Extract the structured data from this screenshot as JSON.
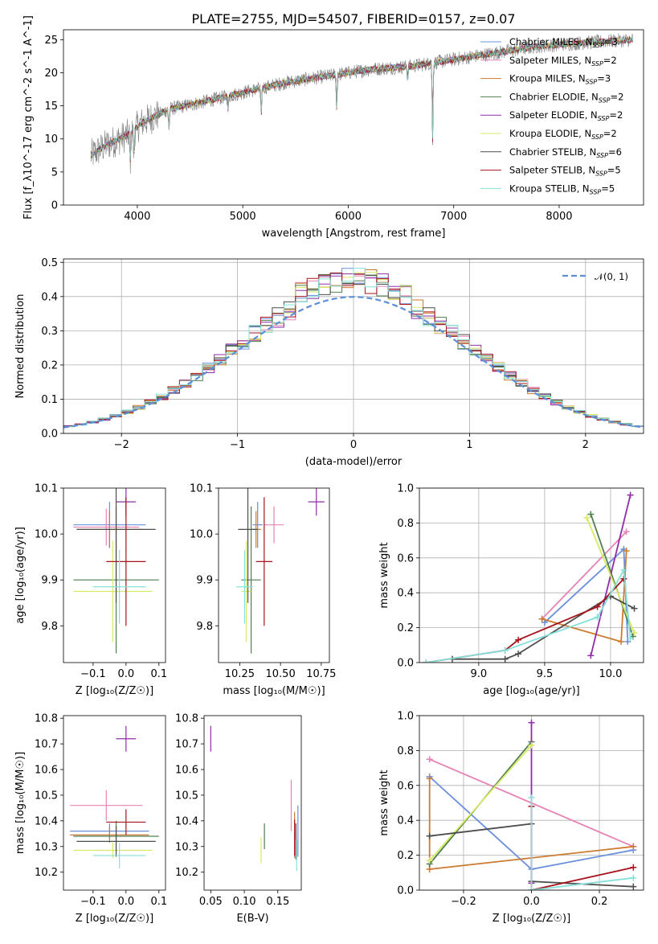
{
  "figure": {
    "title": "PLATE=2755, MJD=54507, FIBERID=0157, z=0.07"
  },
  "colors": {
    "Chabrier MILES": "#6a8fdc",
    "Salpeter MILES": "#e683b4",
    "Kroupa MILES": "#cd7a2f",
    "Chabrier ELODIE": "#4f7f4f",
    "Salpeter ELODIE": "#8e2ea6",
    "Kroupa ELODIE": "#d7ea63",
    "Chabrier STELIB": "#4d4d4d",
    "Salpeter STELIB": "#a6141c",
    "Kroupa STELIB": "#86e0da",
    "data": "#808080",
    "normal": "#5b8fd9"
  },
  "chart_data": [
    {
      "id": "spectrum",
      "type": "line",
      "xlabel": "wavelength [Angstrom, rest frame]",
      "ylabel": "Flux [f_λ10^-17 erg cm^-2 s^-1 A^-1]",
      "xlim": [
        3300,
        8800
      ],
      "ylim": [
        0,
        26.5
      ],
      "xticks": [
        4000,
        5000,
        6000,
        7000,
        8000
      ],
      "yticks": [
        0,
        5,
        10,
        15,
        20,
        25
      ],
      "x_range_data": [
        3560,
        8700
      ],
      "continuum_anchors": [
        [
          3560,
          7.5
        ],
        [
          3700,
          9
        ],
        [
          3900,
          10.5
        ],
        [
          4050,
          12.5
        ],
        [
          4300,
          14.5
        ],
        [
          4600,
          15.5
        ],
        [
          5000,
          17
        ],
        [
          5400,
          18.5
        ],
        [
          5800,
          19.5
        ],
        [
          6200,
          20.5
        ],
        [
          6600,
          21
        ],
        [
          7000,
          22
        ],
        [
          7400,
          23
        ],
        [
          7800,
          24
        ],
        [
          8200,
          24.5
        ],
        [
          8700,
          25
        ]
      ],
      "absorption_features": [
        [
          3933,
          4.5
        ],
        [
          3968,
          4.5
        ],
        [
          4300,
          3
        ],
        [
          4861,
          2
        ],
        [
          5175,
          4
        ],
        [
          5890,
          5
        ],
        [
          6563,
          2
        ],
        [
          6800,
          12
        ]
      ],
      "legend_location": "upper right",
      "legend": [
        {
          "label": "Chabrier MILES, N",
          "sub": "SSP",
          "suffix": "=3"
        },
        {
          "label": "Salpeter MILES, N",
          "sub": "SSP",
          "suffix": "=2"
        },
        {
          "label": "Kroupa MILES, N",
          "sub": "SSP",
          "suffix": "=3"
        },
        {
          "label": "Chabrier ELODIE, N",
          "sub": "SSP",
          "suffix": "=2"
        },
        {
          "label": "Salpeter ELODIE, N",
          "sub": "SSP",
          "suffix": "=2"
        },
        {
          "label": "Kroupa ELODIE, N",
          "sub": "SSP",
          "suffix": "=2"
        },
        {
          "label": "Chabrier STELIB, N",
          "sub": "SSP",
          "suffix": "=6"
        },
        {
          "label": "Salpeter STELIB, N",
          "sub": "SSP",
          "suffix": "=5"
        },
        {
          "label": "Kroupa STELIB, N",
          "sub": "SSP",
          "suffix": "=5"
        }
      ]
    },
    {
      "id": "residuals",
      "type": "line",
      "xlabel": "(data-model)/error",
      "ylabel": "Normed distribution",
      "xlim": [
        -2.5,
        2.5
      ],
      "ylim": [
        0,
        0.51
      ],
      "xticks": [
        -2,
        -1,
        0,
        1,
        2
      ],
      "yticks": [
        0.0,
        0.1,
        0.2,
        0.3,
        0.4,
        0.5
      ],
      "grid": true,
      "bin_width": 0.1,
      "bin_start": -2.5,
      "bin_count": 50,
      "normal_label": "𝒩(0, 1)",
      "legend_location": "upper right"
    },
    {
      "id": "age_vs_Z",
      "type": "scatter",
      "xlabel": "Z [log₁₀(Z/Z☉)]",
      "ylabel": "age  [log₁₀(age/yr)]",
      "xlim": [
        -0.19,
        0.12
      ],
      "ylim": [
        9.72,
        10.1
      ],
      "xticks": [
        -0.1,
        0.0,
        0.1
      ],
      "yticks": [
        9.8,
        9.9,
        10.0,
        10.1
      ],
      "points": [
        {
          "model": "Chabrier MILES",
          "x": -0.05,
          "y": 10.02,
          "xerr": 0.11,
          "yerr": 0.05
        },
        {
          "model": "Salpeter MILES",
          "x": -0.06,
          "y": 10.015,
          "xerr": 0.1,
          "yerr": 0.04
        },
        {
          "model": "Kroupa MILES",
          "x": -0.05,
          "y": 10.01,
          "xerr": 0.1,
          "yerr": 0.04
        },
        {
          "model": "Chabrier ELODIE",
          "x": -0.03,
          "y": 9.9,
          "xerr": 0.13,
          "yerr": 0.16
        },
        {
          "model": "Salpeter ELODIE",
          "x": 0.0,
          "y": 10.07,
          "xerr": 0.03,
          "yerr": 0.03
        },
        {
          "model": "Kroupa ELODIE",
          "x": -0.04,
          "y": 9.875,
          "xerr": 0.12,
          "yerr": 0.11
        },
        {
          "model": "Chabrier STELIB",
          "x": -0.03,
          "y": 10.01,
          "xerr": 0.12,
          "yerr": 0.16
        },
        {
          "model": "Salpeter STELIB",
          "x": 0.0,
          "y": 9.94,
          "xerr": 0.06,
          "yerr": 0.14
        },
        {
          "model": "Kroupa STELIB",
          "x": -0.02,
          "y": 9.885,
          "xerr": 0.08,
          "yerr": 0.08
        }
      ]
    },
    {
      "id": "age_vs_mass",
      "type": "scatter",
      "xlabel": "mass [log₁₀(M/M☉)]",
      "ylabel": "",
      "xlim": [
        10.12,
        10.8
      ],
      "ylim": [
        9.72,
        10.1
      ],
      "xticks": [
        10.25,
        10.5,
        10.75
      ],
      "yticks": [
        9.8,
        9.9,
        10.0,
        10.1
      ],
      "points": [
        {
          "model": "Chabrier MILES",
          "x": 10.36,
          "y": 10.02,
          "xerr": 0.03,
          "yerr": 0.05
        },
        {
          "model": "Salpeter MILES",
          "x": 10.46,
          "y": 10.02,
          "xerr": 0.06,
          "yerr": 0.04
        },
        {
          "model": "Kroupa MILES",
          "x": 10.35,
          "y": 10.01,
          "xerr": 0.03,
          "yerr": 0.04
        },
        {
          "model": "Chabrier ELODIE",
          "x": 10.32,
          "y": 9.9,
          "xerr": 0.06,
          "yerr": 0.16
        },
        {
          "model": "Salpeter ELODIE",
          "x": 10.72,
          "y": 10.07,
          "xerr": 0.05,
          "yerr": 0.03
        },
        {
          "model": "Kroupa ELODIE",
          "x": 10.29,
          "y": 9.875,
          "xerr": 0.03,
          "yerr": 0.11
        },
        {
          "model": "Chabrier STELIB",
          "x": 10.3,
          "y": 10.01,
          "xerr": 0.06,
          "yerr": 0.16
        },
        {
          "model": "Salpeter STELIB",
          "x": 10.4,
          "y": 9.94,
          "xerr": 0.05,
          "yerr": 0.14
        },
        {
          "model": "Kroupa STELIB",
          "x": 10.28,
          "y": 9.885,
          "xerr": 0.05,
          "yerr": 0.08
        }
      ]
    },
    {
      "id": "weight_vs_age",
      "type": "line",
      "xlabel": "age  [log₁₀(age/yr)]",
      "ylabel": "mass weight",
      "xlim": [
        8.55,
        10.25
      ],
      "ylim": [
        0,
        1.0
      ],
      "xticks": [
        9.0,
        9.5,
        10.0
      ],
      "yticks": [
        0.0,
        0.2,
        0.4,
        0.6,
        0.8,
        1.0
      ],
      "grid": true,
      "series": [
        {
          "model": "Chabrier MILES",
          "x": [
            9.5,
            10.1,
            10.13
          ],
          "y": [
            0.23,
            0.65,
            0.12
          ]
        },
        {
          "model": "Salpeter MILES",
          "x": [
            9.48,
            10.12
          ],
          "y": [
            0.25,
            0.75
          ]
        },
        {
          "model": "Kroupa MILES",
          "x": [
            9.48,
            10.08,
            10.12
          ],
          "y": [
            0.25,
            0.12,
            0.64
          ]
        },
        {
          "model": "Chabrier ELODIE",
          "x": [
            9.85,
            10.17
          ],
          "y": [
            0.85,
            0.15
          ]
        },
        {
          "model": "Salpeter ELODIE",
          "x": [
            9.85,
            10.15
          ],
          "y": [
            0.04,
            0.96
          ]
        },
        {
          "model": "Kroupa ELODIE",
          "x": [
            9.82,
            10.18
          ],
          "y": [
            0.83,
            0.17
          ]
        },
        {
          "model": "Chabrier STELIB",
          "x": [
            8.8,
            9.2,
            9.3,
            10.0,
            10.18
          ],
          "y": [
            0.02,
            0.02,
            0.05,
            0.38,
            0.31
          ]
        },
        {
          "model": "Salpeter STELIB",
          "x": [
            8.6,
            9.2,
            9.3,
            9.9,
            10.1
          ],
          "y": [
            0.0,
            0.07,
            0.13,
            0.32,
            0.48
          ]
        },
        {
          "model": "Kroupa STELIB",
          "x": [
            8.6,
            9.2,
            9.9,
            10.1,
            10.15
          ],
          "y": [
            0.0,
            0.07,
            0.26,
            0.53,
            0.14
          ]
        }
      ]
    },
    {
      "id": "mass_vs_Z",
      "type": "scatter",
      "xlabel": "Z [log₁₀(Z/Z☉)]",
      "ylabel": "mass [log₁₀(M/M☉)]",
      "xlim": [
        -0.19,
        0.12
      ],
      "ylim": [
        10.13,
        10.81
      ],
      "xticks": [
        -0.1,
        0.0,
        0.1
      ],
      "yticks": [
        10.2,
        10.3,
        10.4,
        10.5,
        10.6,
        10.7,
        10.8
      ],
      "points": [
        {
          "model": "Chabrier MILES",
          "x": -0.05,
          "y": 10.36,
          "xerr": 0.12,
          "yerr": 0.03
        },
        {
          "model": "Salpeter MILES",
          "x": -0.06,
          "y": 10.46,
          "xerr": 0.11,
          "yerr": 0.06
        },
        {
          "model": "Kroupa MILES",
          "x": -0.05,
          "y": 10.345,
          "xerr": 0.12,
          "yerr": 0.03
        },
        {
          "model": "Chabrier ELODIE",
          "x": -0.03,
          "y": 10.34,
          "xerr": 0.13,
          "yerr": 0.06
        },
        {
          "model": "Salpeter ELODIE",
          "x": 0.0,
          "y": 10.72,
          "xerr": 0.03,
          "yerr": 0.05
        },
        {
          "model": "Kroupa ELODIE",
          "x": -0.04,
          "y": 10.285,
          "xerr": 0.12,
          "yerr": 0.03
        },
        {
          "model": "Chabrier STELIB",
          "x": -0.03,
          "y": 10.32,
          "xerr": 0.12,
          "yerr": 0.06
        },
        {
          "model": "Salpeter STELIB",
          "x": 0.0,
          "y": 10.395,
          "xerr": 0.06,
          "yerr": 0.05
        },
        {
          "model": "Kroupa STELIB",
          "x": -0.02,
          "y": 10.265,
          "xerr": 0.08,
          "yerr": 0.05
        }
      ]
    },
    {
      "id": "mass_vs_ebv",
      "type": "scatter",
      "xlabel": "E(B-V)",
      "ylabel": "",
      "xlim": [
        0.04,
        0.185
      ],
      "ylim": [
        10.13,
        10.81
      ],
      "xticks": [
        0.05,
        0.1,
        0.15
      ],
      "yticks": [
        10.2,
        10.3,
        10.4,
        10.5,
        10.6,
        10.7,
        10.8
      ],
      "points": [
        {
          "model": "Chabrier MILES",
          "x": 0.18,
          "y": 10.36,
          "yerr": 0.1
        },
        {
          "model": "Salpeter MILES",
          "x": 0.17,
          "y": 10.46,
          "yerr": 0.1
        },
        {
          "model": "Kroupa MILES",
          "x": 0.175,
          "y": 10.345,
          "yerr": 0.09
        },
        {
          "model": "Chabrier ELODIE",
          "x": 0.13,
          "y": 10.34,
          "yerr": 0.05
        },
        {
          "model": "Salpeter ELODIE",
          "x": 0.05,
          "y": 10.72,
          "yerr": 0.05
        },
        {
          "model": "Kroupa ELODIE",
          "x": 0.125,
          "y": 10.285,
          "yerr": 0.05
        },
        {
          "model": "Chabrier STELIB",
          "x": 0.177,
          "y": 10.32,
          "yerr": 0.07
        },
        {
          "model": "Salpeter STELIB",
          "x": 0.175,
          "y": 10.335,
          "yerr": 0.07
        },
        {
          "model": "Kroupa STELIB",
          "x": 0.178,
          "y": 10.265,
          "yerr": 0.06
        }
      ]
    },
    {
      "id": "weight_vs_Z",
      "type": "line",
      "xlabel": "Z [log₁₀(Z/Z☉)]",
      "ylabel": "mass weight",
      "xlim": [
        -0.33,
        0.33
      ],
      "ylim": [
        0,
        1.0
      ],
      "xticks": [
        -0.2,
        0.0,
        0.2
      ],
      "yticks": [
        0.0,
        0.2,
        0.4,
        0.6,
        0.8,
        1.0
      ],
      "grid": true,
      "series": [
        {
          "model": "Chabrier MILES",
          "x": [
            -0.3,
            0.0,
            0.3
          ],
          "y": [
            0.65,
            0.12,
            0.23
          ]
        },
        {
          "model": "Salpeter MILES",
          "x": [
            -0.3,
            0.3
          ],
          "y": [
            0.75,
            0.25
          ]
        },
        {
          "model": "Kroupa MILES",
          "x": [
            -0.3,
            -0.3,
            0.3
          ],
          "y": [
            0.64,
            0.12,
            0.25
          ]
        },
        {
          "model": "Chabrier ELODIE",
          "x": [
            -0.3,
            0.0
          ],
          "y": [
            0.15,
            0.85
          ]
        },
        {
          "model": "Salpeter ELODIE",
          "x": [
            0.0,
            0.0
          ],
          "y": [
            0.96,
            0.04
          ]
        },
        {
          "model": "Kroupa ELODIE",
          "x": [
            -0.3,
            0.0
          ],
          "y": [
            0.17,
            0.83
          ]
        },
        {
          "model": "Chabrier STELIB",
          "x": [
            -0.3,
            0.0,
            0.0,
            0.3
          ],
          "y": [
            0.31,
            0.38,
            0.05,
            0.02
          ]
        },
        {
          "model": "Salpeter STELIB",
          "x": [
            0.0,
            0.0,
            0.3
          ],
          "y": [
            0.48,
            0.0,
            0.13
          ]
        },
        {
          "model": "Kroupa STELIB",
          "x": [
            0.0,
            0.0,
            0.3
          ],
          "y": [
            0.53,
            0.0,
            0.07
          ]
        }
      ]
    }
  ]
}
